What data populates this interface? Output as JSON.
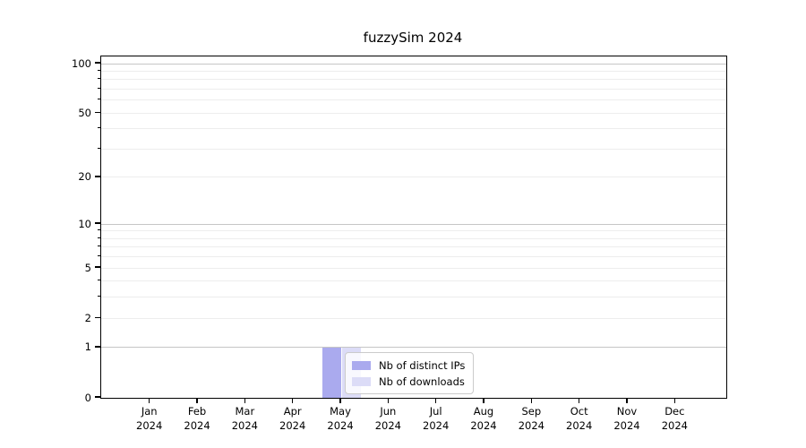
{
  "chart_data": {
    "type": "bar",
    "title": "fuzzySim 2024",
    "xlabel": "",
    "ylabel": "",
    "categories": [
      "Jan",
      "Feb",
      "Mar",
      "Apr",
      "May",
      "Jun",
      "Jul",
      "Aug",
      "Sep",
      "Oct",
      "Nov",
      "Dec"
    ],
    "category_year": "2024",
    "series": [
      {
        "name": "Nb of distinct IPs",
        "color": "#aaaaee",
        "values": [
          0,
          0,
          0,
          0,
          1,
          0,
          0,
          0,
          0,
          0,
          0,
          0
        ]
      },
      {
        "name": "Nb of downloads",
        "color": "#dcdcf7",
        "values": [
          0,
          0,
          0,
          0,
          1,
          0,
          0,
          0,
          0,
          0,
          0,
          0
        ]
      }
    ],
    "yscale": "log1p",
    "ylim": [
      0,
      100
    ],
    "yticks_labeled": [
      0,
      1,
      2,
      5,
      10,
      20,
      50,
      100
    ],
    "y_major_gridlines": [
      1,
      10,
      100
    ],
    "y_minor_gridlines": [
      2,
      3,
      4,
      5,
      6,
      7,
      8,
      9,
      20,
      30,
      40,
      50,
      60,
      70,
      80,
      90
    ],
    "grid": true,
    "legend_position": "lower center",
    "colors": {
      "axis": "#000000",
      "major_grid": "#c6c6c6",
      "minor_grid": "#ededed",
      "background": "#ffffff"
    }
  }
}
